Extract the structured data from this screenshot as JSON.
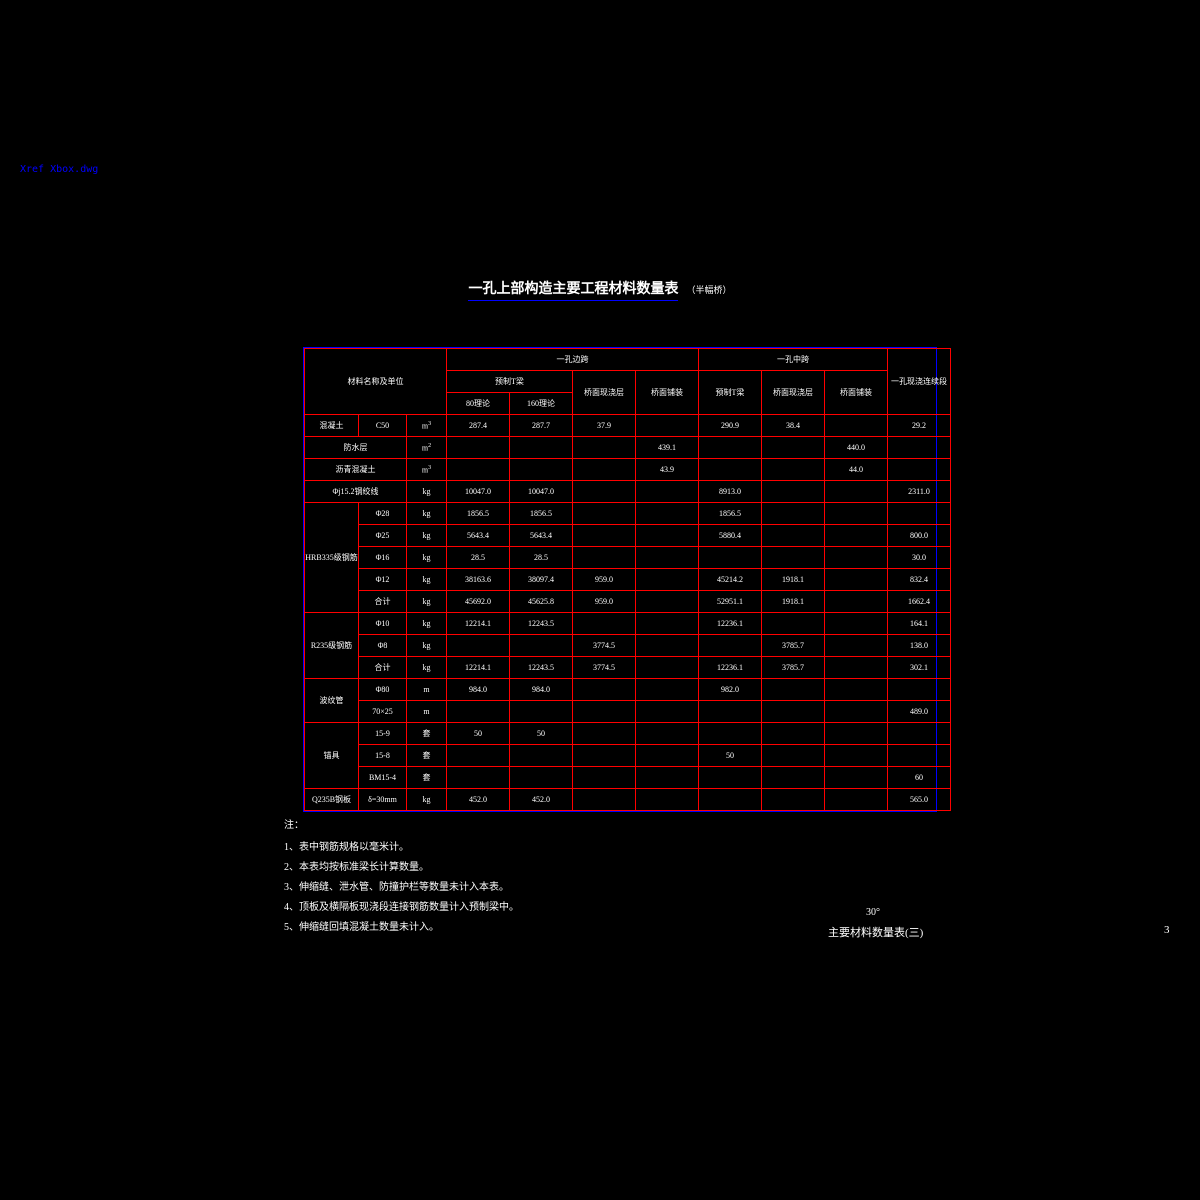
{
  "filename": "Xref Xbox.dwg",
  "title": "一孔上部构造主要工程材料数量表",
  "subtitle": "（半幅桥）",
  "colors": {
    "background": "#000000",
    "table_border": "#ff0000",
    "outer_border": "#0000ff",
    "text": "#ffffff",
    "link": "#0000ff"
  },
  "header": {
    "mat_label": "材料名称及单位",
    "col_bian": "一孔边跨",
    "col_zhong": "一孔中跨",
    "col_xian": "一孔现浇连续段",
    "sub_yuzhiT": "预制T梁",
    "sub_jiaokuan": "桥面现浇层",
    "sub_pubian": "桥面铺装",
    "sub_80": "80理论",
    "sub_160": "160理论"
  },
  "rows": [
    {
      "g": "混凝土",
      "s": "C50",
      "u": "m",
      "sup": "3",
      "d": [
        "287.4",
        "287.7",
        "37.9",
        "",
        "290.9",
        "38.4",
        "",
        "29.2"
      ]
    },
    {
      "g2": "防水层",
      "u": "m",
      "sup": "2",
      "d": [
        "",
        "",
        "",
        "439.1",
        "",
        "",
        "440.0",
        ""
      ]
    },
    {
      "g2": "沥青混凝土",
      "u": "m",
      "sup": "3",
      "d": [
        "",
        "",
        "",
        "43.9",
        "",
        "",
        "44.0",
        ""
      ]
    },
    {
      "g2": "Φj15.2钢绞线",
      "u": "kg",
      "d": [
        "10047.0",
        "10047.0",
        "",
        "",
        "8913.0",
        "",
        "",
        "2311.0"
      ]
    },
    {
      "g": "HRB335级钢筋",
      "rs": 5,
      "s": "Φ28",
      "u": "kg",
      "d": [
        "1856.5",
        "1856.5",
        "",
        "",
        "1856.5",
        "",
        "",
        ""
      ]
    },
    {
      "s": "Φ25",
      "u": "kg",
      "d": [
        "5643.4",
        "5643.4",
        "",
        "",
        "5880.4",
        "",
        "",
        "800.0"
      ]
    },
    {
      "s": "Φ16",
      "u": "kg",
      "d": [
        "28.5",
        "28.5",
        "",
        "",
        "",
        "",
        "",
        "30.0"
      ]
    },
    {
      "s": "Φ12",
      "u": "kg",
      "d": [
        "38163.6",
        "38097.4",
        "959.0",
        "",
        "45214.2",
        "1918.1",
        "",
        "832.4"
      ]
    },
    {
      "s": "合计",
      "u": "kg",
      "d": [
        "45692.0",
        "45625.8",
        "959.0",
        "",
        "52951.1",
        "1918.1",
        "",
        "1662.4"
      ]
    },
    {
      "g": "R235级钢筋",
      "rs": 3,
      "s": "Φ10",
      "u": "kg",
      "d": [
        "12214.1",
        "12243.5",
        "",
        "",
        "12236.1",
        "",
        "",
        "164.1"
      ]
    },
    {
      "s": "Φ8",
      "u": "kg",
      "d": [
        "",
        "",
        "3774.5",
        "",
        "",
        "3785.7",
        "",
        "138.0"
      ]
    },
    {
      "s": "合计",
      "u": "kg",
      "d": [
        "12214.1",
        "12243.5",
        "3774.5",
        "",
        "12236.1",
        "3785.7",
        "",
        "302.1"
      ]
    },
    {
      "g": "波纹管",
      "rs": 2,
      "s": "Φ80",
      "u": "m",
      "d": [
        "984.0",
        "984.0",
        "",
        "",
        "982.0",
        "",
        "",
        ""
      ]
    },
    {
      "s": "70×25",
      "u": "m",
      "d": [
        "",
        "",
        "",
        "",
        "",
        "",
        "",
        "489.0"
      ]
    },
    {
      "g": "锚具",
      "rs": 3,
      "s": "15-9",
      "u": "套",
      "d": [
        "50",
        "50",
        "",
        "",
        "",
        "",
        "",
        ""
      ]
    },
    {
      "s": "15-8",
      "u": "套",
      "d": [
        "",
        "",
        "",
        "",
        "50",
        "",
        "",
        ""
      ]
    },
    {
      "s": "BM15-4",
      "u": "套",
      "d": [
        "",
        "",
        "",
        "",
        "",
        "",
        "",
        "60"
      ]
    },
    {
      "g": "Q235B钢板",
      "s": "δ=30mm",
      "u": "kg",
      "d": [
        "452.0",
        "452.0",
        "",
        "",
        "",
        "",
        "",
        "565.0"
      ]
    }
  ],
  "notes": {
    "heading": "注：",
    "items": [
      "1、表中钢筋规格以毫米计。",
      "2、本表均按标准梁长计算数量。",
      "3、伸缩缝、泄水管、防撞护栏等数量未计入本表。",
      "4、顶板及横隔板现浇段连接钢筋数量计入预制梁中。",
      "5、伸缩缝回填混凝土数量未计入。"
    ]
  },
  "footer": {
    "angle": "30°",
    "title": "主要材料数量表(三)",
    "page": "3"
  }
}
